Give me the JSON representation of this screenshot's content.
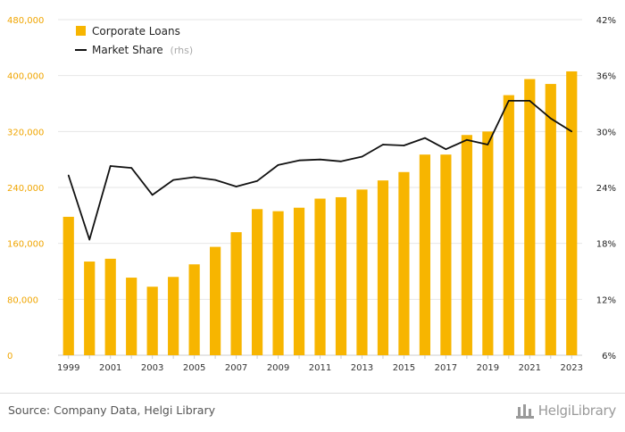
{
  "chart_data": {
    "type": "bar+line",
    "title": "",
    "x": [
      "1999",
      "2000",
      "2001",
      "2002",
      "2003",
      "2004",
      "2005",
      "2006",
      "2007",
      "2008",
      "2009",
      "2010",
      "2011",
      "2012",
      "2013",
      "2014",
      "2015",
      "2016",
      "2017",
      "2018",
      "2019",
      "2020",
      "2021",
      "2022",
      "2023"
    ],
    "x_tick_labels": [
      "1999",
      "2001",
      "2003",
      "2005",
      "2007",
      "2009",
      "2011",
      "2013",
      "2015",
      "2017",
      "2019",
      "2021",
      "2023"
    ],
    "series": [
      {
        "name": "Corporate Loans",
        "type": "bar",
        "axis": "left",
        "color": "#f7b500",
        "values": [
          198000,
          134000,
          138000,
          111000,
          98000,
          112000,
          130000,
          155000,
          176000,
          209000,
          206000,
          211000,
          224000,
          226000,
          237000,
          250000,
          262000,
          287000,
          287000,
          315000,
          320000,
          372000,
          395000,
          388000,
          406000
        ]
      },
      {
        "name": "Market Share",
        "name_suffix": "(rhs)",
        "type": "line",
        "axis": "right",
        "color": "#111111",
        "values": [
          25.3,
          18.4,
          26.3,
          26.1,
          23.2,
          24.8,
          25.1,
          24.8,
          24.1,
          24.7,
          26.4,
          26.9,
          27.0,
          26.8,
          27.3,
          28.6,
          28.5,
          29.3,
          28.1,
          29.1,
          28.6,
          33.3,
          33.3,
          31.4,
          30.0
        ]
      }
    ],
    "y_left": {
      "range": [
        0,
        480000
      ],
      "ticks": [
        "0",
        "80,000",
        "160,000",
        "240,000",
        "320,000",
        "400,000",
        "480,000"
      ]
    },
    "y_right": {
      "range": [
        6,
        42
      ],
      "ticks": [
        "6%",
        "12%",
        "18%",
        "24%",
        "30%",
        "36%",
        "42%"
      ]
    },
    "grid": true,
    "legend_position": "top-left"
  },
  "footer": {
    "source": "Source: Company Data, Helgi Library",
    "brand": "HelgiLibrary"
  }
}
